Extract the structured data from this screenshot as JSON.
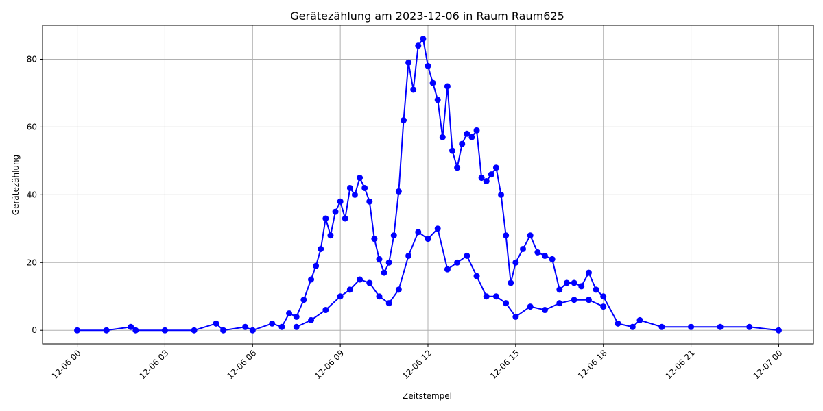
{
  "chart_data": {
    "type": "line",
    "title": "Gerätezählung am 2023-12-06 in Raum Raum625",
    "xlabel": "Zeitstempel",
    "ylabel": "Gerätezählung",
    "ylim": [
      -4,
      90
    ],
    "x_range": [
      "2023-12-06 00:00",
      "2023-12-07 00:00"
    ],
    "x_ticks": [
      "12-06 00",
      "12-06 03",
      "12-06 06",
      "12-06 09",
      "12-06 12",
      "12-06 15",
      "12-06 18",
      "12-06 21",
      "12-07 00"
    ],
    "y_ticks": [
      0,
      20,
      40,
      60,
      80
    ],
    "grid": true,
    "series_color": "#0000ff",
    "series": [
      {
        "x": [
          "2023-12-06 00:00",
          "2023-12-06 01:00",
          "2023-12-06 01:50",
          "2023-12-06 02:00",
          "2023-12-06 03:00",
          "2023-12-06 04:00",
          "2023-12-06 04:45",
          "2023-12-06 05:00",
          "2023-12-06 05:45",
          "2023-12-06 06:00",
          "2023-12-06 06:40",
          "2023-12-06 07:00",
          "2023-12-06 07:15",
          "2023-12-06 07:30",
          "2023-12-06 07:45",
          "2023-12-06 08:00",
          "2023-12-06 08:10",
          "2023-12-06 08:20",
          "2023-12-06 08:30",
          "2023-12-06 08:40",
          "2023-12-06 08:50",
          "2023-12-06 09:00",
          "2023-12-06 09:10",
          "2023-12-06 09:20",
          "2023-12-06 09:30",
          "2023-12-06 09:40",
          "2023-12-06 09:50",
          "2023-12-06 10:00",
          "2023-12-06 10:10",
          "2023-12-06 10:20",
          "2023-12-06 10:30",
          "2023-12-06 10:40",
          "2023-12-06 10:50",
          "2023-12-06 11:00",
          "2023-12-06 11:10",
          "2023-12-06 11:20",
          "2023-12-06 11:30",
          "2023-12-06 11:40",
          "2023-12-06 11:50",
          "2023-12-06 12:00",
          "2023-12-06 12:10",
          "2023-12-06 12:20",
          "2023-12-06 12:30",
          "2023-12-06 12:40",
          "2023-12-06 12:50",
          "2023-12-06 13:00",
          "2023-12-06 13:10",
          "2023-12-06 13:20",
          "2023-12-06 13:30",
          "2023-12-06 13:40",
          "2023-12-06 13:50",
          "2023-12-06 14:00",
          "2023-12-06 14:10",
          "2023-12-06 14:20",
          "2023-12-06 14:30",
          "2023-12-06 14:40",
          "2023-12-06 14:50",
          "2023-12-06 15:00",
          "2023-12-06 15:15",
          "2023-12-06 15:30",
          "2023-12-06 15:45",
          "2023-12-06 16:00",
          "2023-12-06 16:15",
          "2023-12-06 16:30",
          "2023-12-06 16:45",
          "2023-12-06 17:00",
          "2023-12-06 17:15",
          "2023-12-06 17:30",
          "2023-12-06 17:45",
          "2023-12-06 18:00",
          "2023-12-06 18:30",
          "2023-12-06 19:00",
          "2023-12-06 19:15",
          "2023-12-06 20:00",
          "2023-12-06 21:00",
          "2023-12-06 22:00",
          "2023-12-06 23:00",
          "2023-12-07 00:00"
        ],
        "y": [
          0,
          0,
          1,
          0,
          0,
          0,
          2,
          0,
          1,
          0,
          2,
          1,
          5,
          4,
          9,
          15,
          19,
          24,
          33,
          28,
          35,
          38,
          33,
          42,
          40,
          45,
          42,
          38,
          27,
          21,
          17,
          20,
          28,
          41,
          62,
          79,
          71,
          84,
          86,
          78,
          73,
          68,
          57,
          72,
          53,
          48,
          55,
          58,
          57,
          59,
          45,
          44,
          46,
          48,
          40,
          28,
          14,
          20,
          24,
          28,
          23,
          22,
          21,
          12,
          14,
          14,
          13,
          17,
          12,
          10,
          2,
          1,
          3,
          1,
          1,
          1,
          1,
          0
        ]
      },
      {
        "x": [
          "2023-12-06 07:30",
          "2023-12-06 08:00",
          "2023-12-06 08:30",
          "2023-12-06 09:00",
          "2023-12-06 09:20",
          "2023-12-06 09:40",
          "2023-12-06 10:00",
          "2023-12-06 10:20",
          "2023-12-06 10:40",
          "2023-12-06 11:00",
          "2023-12-06 11:20",
          "2023-12-06 11:40",
          "2023-12-06 12:00",
          "2023-12-06 12:20",
          "2023-12-06 12:40",
          "2023-12-06 13:00",
          "2023-12-06 13:20",
          "2023-12-06 13:40",
          "2023-12-06 14:00",
          "2023-12-06 14:20",
          "2023-12-06 14:40",
          "2023-12-06 15:00",
          "2023-12-06 15:30",
          "2023-12-06 16:00",
          "2023-12-06 16:30",
          "2023-12-06 17:00",
          "2023-12-06 17:30",
          "2023-12-06 18:00"
        ],
        "y": [
          1,
          3,
          6,
          10,
          12,
          15,
          14,
          10,
          8,
          12,
          22,
          29,
          27,
          30,
          18,
          20,
          22,
          16,
          10,
          10,
          8,
          4,
          7,
          6,
          8,
          9,
          9,
          7
        ]
      }
    ]
  }
}
